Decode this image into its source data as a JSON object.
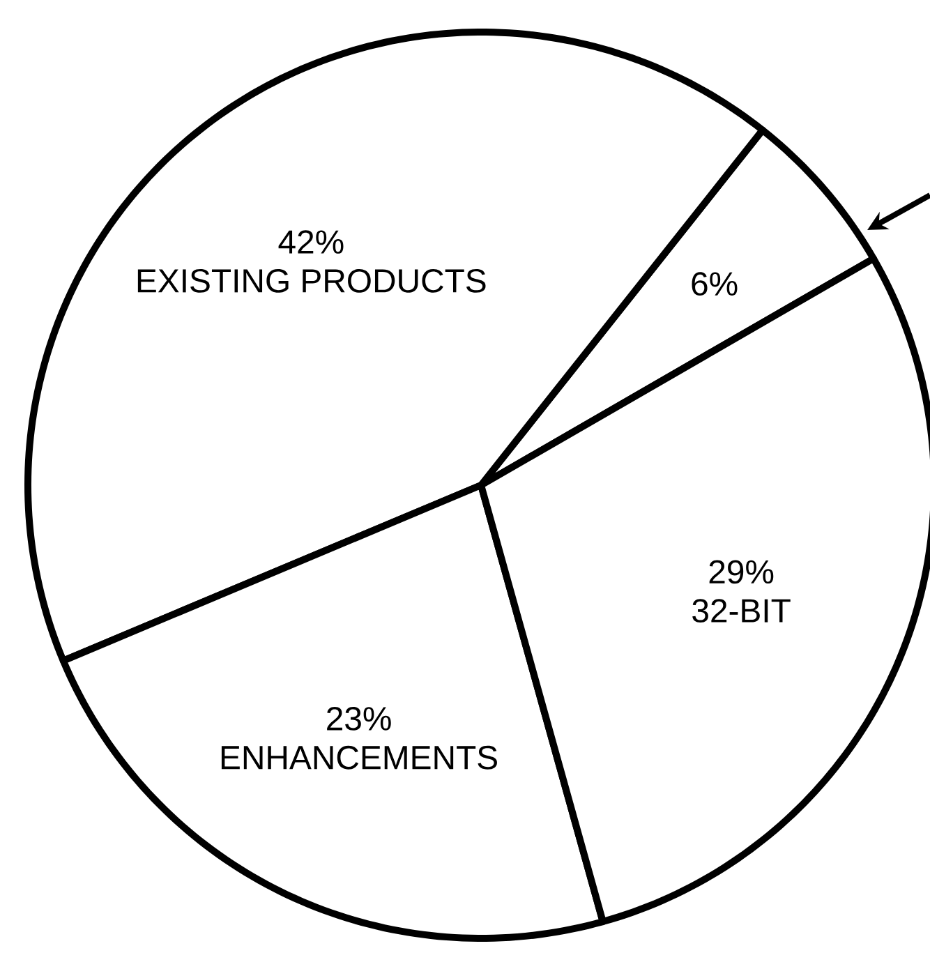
{
  "chart_data": {
    "type": "pie",
    "categories": [
      null,
      "EXISTING PRODUCTS",
      "ENHANCEMENTS",
      "32-BIT"
    ],
    "values": [
      6,
      42,
      23,
      29
    ],
    "value_labels": [
      "6%",
      "42%",
      "23%",
      "29%"
    ],
    "colors": [
      "#ffffff",
      "#ffffff",
      "#ffffff",
      "#ffffff"
    ]
  }
}
